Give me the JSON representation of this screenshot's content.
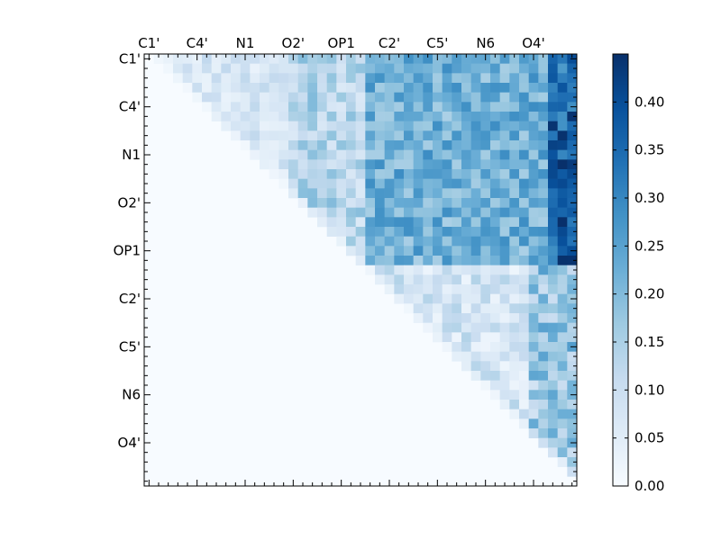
{
  "chart_data": {
    "type": "heatmap",
    "n": 45,
    "tick_labels": [
      "C1'",
      "C4'",
      "N1",
      "O2'",
      "OP1",
      "C2'",
      "C5'",
      "N6",
      "O4'"
    ],
    "tick_index": [
      0,
      5,
      10,
      15,
      20,
      25,
      30,
      35,
      40
    ],
    "colorbar": {
      "min": 0.0,
      "max": 0.45,
      "ticks": [
        0.0,
        0.05,
        0.1,
        0.15,
        0.2,
        0.25,
        0.3,
        0.35,
        0.4
      ],
      "tick_labels": [
        "0.00",
        "0.05",
        "0.10",
        "0.15",
        "0.20",
        "0.25",
        "0.30",
        "0.35",
        "0.40"
      ],
      "colormap": "Blues"
    },
    "upper_triangle_only": true,
    "x_axis_position": "top",
    "values_note_omitted": ""
  }
}
